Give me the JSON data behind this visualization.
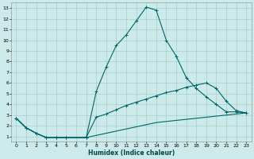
{
  "xlabel": "Humidex (Indice chaleur)",
  "bg_color": "#cceaea",
  "grid_color": "#aacccc",
  "line_color": "#006666",
  "xlim": [
    -0.5,
    23.5
  ],
  "ylim": [
    0.5,
    13.5
  ],
  "xticks": [
    0,
    1,
    2,
    3,
    4,
    5,
    6,
    7,
    8,
    9,
    10,
    11,
    12,
    13,
    14,
    15,
    16,
    17,
    18,
    19,
    20,
    21,
    22,
    23
  ],
  "yticks": [
    1,
    2,
    3,
    4,
    5,
    6,
    7,
    8,
    9,
    10,
    11,
    12,
    13
  ],
  "series1_x": [
    0,
    1,
    2,
    3,
    4,
    5,
    7,
    8,
    9,
    10,
    11,
    12,
    13,
    14,
    15,
    16,
    17,
    18,
    19,
    20,
    21,
    22,
    23
  ],
  "series1_y": [
    2.7,
    1.8,
    1.3,
    0.9,
    0.9,
    0.9,
    0.9,
    5.2,
    7.5,
    9.5,
    10.5,
    11.8,
    13.1,
    12.8,
    10.0,
    8.5,
    6.5,
    5.5,
    4.7,
    4.0,
    3.3,
    3.3,
    3.2
  ],
  "series2_x": [
    0,
    1,
    2,
    3,
    4,
    5,
    7,
    8,
    9,
    10,
    11,
    12,
    13,
    14,
    15,
    16,
    17,
    18,
    19,
    20,
    21,
    22,
    23
  ],
  "series2_y": [
    2.7,
    1.8,
    1.3,
    0.9,
    0.9,
    0.9,
    0.9,
    2.8,
    3.1,
    3.5,
    3.9,
    4.2,
    4.5,
    4.8,
    5.1,
    5.3,
    5.6,
    5.8,
    6.0,
    5.5,
    4.3,
    3.4,
    3.2
  ],
  "series3_x": [
    0,
    1,
    2,
    3,
    4,
    5,
    6,
    7,
    8,
    9,
    10,
    11,
    12,
    13,
    14,
    15,
    16,
    17,
    18,
    19,
    20,
    21,
    22,
    23
  ],
  "series3_y": [
    2.7,
    1.8,
    1.3,
    0.9,
    0.9,
    0.9,
    0.9,
    0.9,
    1.1,
    1.3,
    1.5,
    1.7,
    1.9,
    2.1,
    2.3,
    2.4,
    2.5,
    2.6,
    2.7,
    2.8,
    2.9,
    3.0,
    3.1,
    3.2
  ]
}
